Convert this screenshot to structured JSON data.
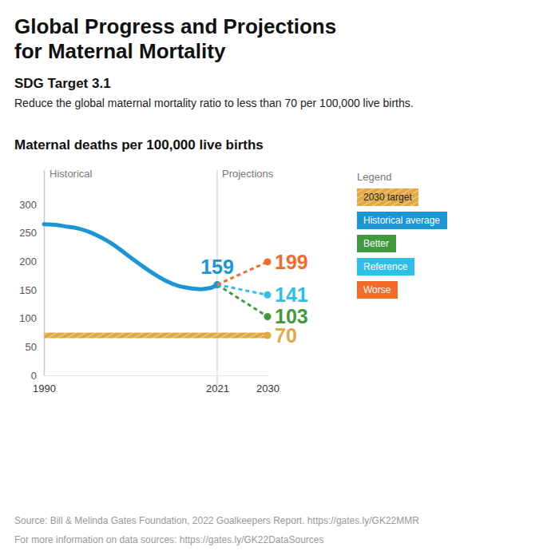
{
  "chart_data": {
    "type": "line",
    "title": "Global Progress and Projections\nfor Maternal Mortality",
    "subtitle": "SDG Target 3.1",
    "description": "Reduce the global maternal mortality ratio to less than 70 per 100,000 live births.",
    "y_label": "Maternal deaths per 100,000 live births",
    "annotations": [
      "Historical",
      "Projections"
    ],
    "legend_title": "Legend",
    "notes": [
      "Source: Bill & Melinda Gates Foundation, 2022 Goalkeepers Report. https://gates.ly/GK22MMR",
      "For more information on data sources: https://gates.ly/GK22DataSources"
    ],
    "xlim": [
      1990,
      2030
    ],
    "xticks": [
      1990,
      2021,
      2030
    ],
    "ylim": [
      0,
      360
    ],
    "yticks": [
      0,
      50,
      100,
      150,
      200,
      250,
      300
    ],
    "grid": false,
    "legend": "right",
    "data_labels": true,
    "series": [
      {
        "name": "2030 target",
        "color": "#e2a943",
        "line_style": "hatched",
        "marker": "circle",
        "x": [
          1990,
          2030
        ],
        "values": [
          70,
          70
        ]
      },
      {
        "name": "Historical average",
        "color": "#1a96d4",
        "line_style": "solid",
        "marker": "circle",
        "x": [
          1990,
          1992,
          1994,
          1996,
          1998,
          2000,
          2002,
          2004,
          2006,
          2008,
          2010,
          2012,
          2014,
          2016,
          2018,
          2019,
          2020,
          2021
        ],
        "values": [
          265,
          264,
          261,
          258,
          252,
          243,
          232,
          218,
          203,
          189,
          176,
          165,
          157,
          153,
          151,
          152,
          154,
          159
        ]
      },
      {
        "name": "Better",
        "color": "#3f9a3c",
        "line_style": "dashed",
        "marker": "circle",
        "x": [
          2021,
          2030
        ],
        "values": [
          159,
          103
        ]
      },
      {
        "name": "Reference",
        "color": "#2ebfe9",
        "line_style": "dashed",
        "marker": "circle",
        "x": [
          2021,
          2030
        ],
        "values": [
          159,
          141
        ]
      },
      {
        "name": "Worse",
        "color": "#f26b2a",
        "line_style": "dashed",
        "marker": "circle",
        "x": [
          2021,
          2030
        ],
        "values": [
          159,
          199
        ]
      }
    ]
  }
}
